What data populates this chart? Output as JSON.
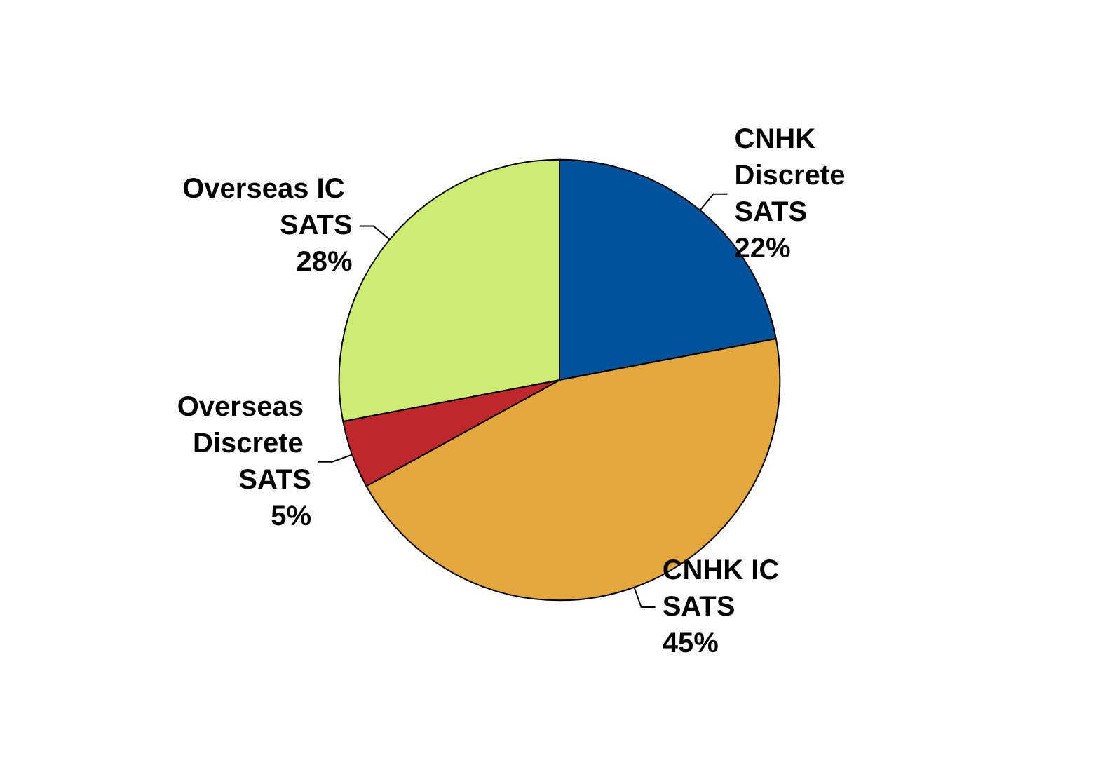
{
  "chart_data": {
    "type": "pie",
    "categories": [
      "CNHK Discrete SATS",
      "CNHK IC SATS",
      "Overseas Discrete SATS",
      "Overseas IC SATS"
    ],
    "values": [
      22,
      45,
      5,
      28
    ],
    "colors": [
      "#00529b",
      "#e3a73b",
      "#c0272d",
      "#cdec72"
    ],
    "value_labels": [
      "22%",
      "45%",
      "5%",
      "28%"
    ],
    "legend": false
  }
}
